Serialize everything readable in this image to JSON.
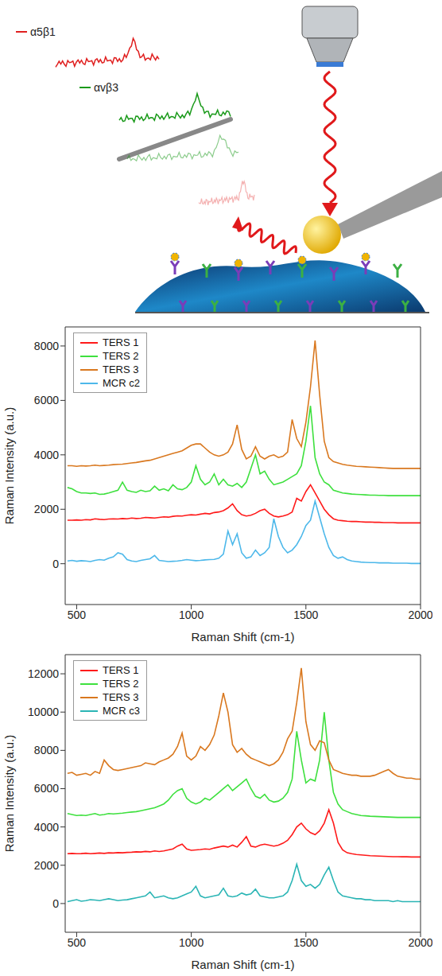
{
  "diagram": {
    "labels": [
      {
        "text": "α5β1",
        "color": "#e02020"
      },
      {
        "text": "αvβ3",
        "color": "#1a9a1a"
      }
    ]
  },
  "chart_data": [
    {
      "type": "line",
      "x_label": "Raman Shift (cm-1)",
      "y_label": "Raman Intensity (a.u.)",
      "legend": "upper left",
      "grid": false,
      "xlim": [
        450,
        2000
      ],
      "xticks": [
        500,
        1000,
        1500,
        2000
      ],
      "ylim": [
        -1500,
        8700
      ],
      "yticks": [
        0,
        2000,
        4000,
        6000,
        8000
      ],
      "x": [
        460,
        480,
        500,
        520,
        540,
        560,
        580,
        600,
        620,
        640,
        660,
        680,
        700,
        720,
        740,
        760,
        780,
        800,
        820,
        840,
        860,
        880,
        900,
        920,
        940,
        960,
        980,
        1000,
        1020,
        1040,
        1060,
        1080,
        1100,
        1120,
        1140,
        1160,
        1180,
        1200,
        1220,
        1240,
        1260,
        1280,
        1300,
        1320,
        1340,
        1360,
        1380,
        1400,
        1420,
        1440,
        1460,
        1480,
        1500,
        1520,
        1540,
        1560,
        1580,
        1600,
        1620,
        1640,
        1660,
        1680,
        1700,
        1720,
        1740,
        1760,
        1780,
        1800,
        1820,
        1840,
        1860,
        1880,
        1900,
        1920,
        1940,
        1960,
        1980,
        2000
      ],
      "series": [
        {
          "name": "TERS 1",
          "color": "#ff1a1a",
          "values": [
            1600,
            1600,
            1610,
            1600,
            1620,
            1610,
            1650,
            1630,
            1620,
            1640,
            1650,
            1640,
            1660,
            1650,
            1680,
            1660,
            1670,
            1700,
            1690,
            1680,
            1700,
            1720,
            1710,
            1740,
            1760,
            1750,
            1780,
            1800,
            1790,
            1820,
            1850,
            1830,
            1880,
            1900,
            1950,
            2050,
            2200,
            1950,
            1800,
            1750,
            1780,
            1850,
            1950,
            2000,
            1850,
            1750,
            1720,
            1750,
            1800,
            1900,
            2400,
            2300,
            2650,
            2900,
            2600,
            2300,
            2000,
            1800,
            1650,
            1600,
            1580,
            1560,
            1550,
            1550,
            1540,
            1530,
            1530,
            1520,
            1520,
            1510,
            1510,
            1510,
            1500,
            1500,
            1500,
            1500,
            1500,
            1500
          ]
        },
        {
          "name": "TERS 2",
          "color": "#3ee03e",
          "values": [
            2800,
            2750,
            2650,
            2600,
            2600,
            2580,
            2600,
            2550,
            2560,
            2600,
            2650,
            2700,
            3000,
            2700,
            2650,
            2620,
            2700,
            2650,
            2680,
            2850,
            2700,
            2750,
            2680,
            2900,
            2750,
            2720,
            2800,
            3000,
            3600,
            3100,
            2900,
            3000,
            3300,
            2900,
            3100,
            2900,
            2850,
            2950,
            2800,
            3000,
            3500,
            4000,
            3300,
            3400,
            3100,
            2900,
            2950,
            3000,
            3100,
            3200,
            3300,
            3600,
            4500,
            5800,
            3900,
            3300,
            3000,
            2900,
            2700,
            2650,
            2600,
            2580,
            2560,
            2550,
            2540,
            2530,
            2520,
            2520,
            2510,
            2510,
            2500,
            2500,
            2500,
            2500,
            2500,
            2500,
            2500,
            2500
          ]
        },
        {
          "name": "TERS 3",
          "color": "#d9781f",
          "values": [
            3600,
            3600,
            3580,
            3600,
            3590,
            3600,
            3620,
            3600,
            3610,
            3620,
            3640,
            3650,
            3660,
            3680,
            3700,
            3720,
            3750,
            3780,
            3800,
            3850,
            3900,
            3950,
            4000,
            4050,
            4100,
            4150,
            4250,
            4350,
            4400,
            4400,
            4250,
            4100,
            4000,
            3950,
            4000,
            4100,
            4400,
            5100,
            4200,
            3850,
            3950,
            4300,
            3950,
            3850,
            3950,
            4000,
            3900,
            3950,
            4100,
            5300,
            4600,
            4300,
            5200,
            6500,
            8200,
            6200,
            4500,
            3900,
            3750,
            3700,
            3650,
            3620,
            3600,
            3580,
            3570,
            3560,
            3550,
            3540,
            3530,
            3520,
            3510,
            3500,
            3500,
            3500,
            3500,
            3500,
            3500,
            3500
          ]
        },
        {
          "name": "MCR c2",
          "color": "#4db8ea",
          "values": [
            100,
            120,
            90,
            110,
            100,
            80,
            120,
            150,
            130,
            200,
            250,
            400,
            350,
            150,
            100,
            80,
            120,
            150,
            180,
            300,
            120,
            100,
            80,
            90,
            100,
            120,
            150,
            130,
            110,
            120,
            140,
            150,
            160,
            200,
            350,
            1200,
            700,
            1100,
            400,
            200,
            250,
            500,
            300,
            400,
            600,
            1650,
            1000,
            600,
            400,
            500,
            700,
            1000,
            1400,
            1600,
            2300,
            1700,
            1100,
            600,
            300,
            200,
            250,
            150,
            100,
            80,
            60,
            50,
            40,
            40,
            30,
            30,
            30,
            20,
            20,
            20,
            20,
            10,
            10,
            10
          ]
        }
      ]
    },
    {
      "type": "line",
      "x_label": "Raman Shift (cm-1)",
      "y_label": "Raman Intensity (a.u.)",
      "legend": "upper left",
      "grid": false,
      "xlim": [
        450,
        2000
      ],
      "xticks": [
        500,
        1000,
        1500,
        2000
      ],
      "ylim": [
        -1500,
        13000
      ],
      "yticks": [
        0,
        2000,
        4000,
        6000,
        8000,
        10000,
        12000
      ],
      "x": [
        460,
        480,
        500,
        520,
        540,
        560,
        580,
        600,
        620,
        640,
        660,
        680,
        700,
        720,
        740,
        760,
        780,
        800,
        820,
        840,
        860,
        880,
        900,
        920,
        940,
        960,
        980,
        1000,
        1020,
        1040,
        1060,
        1080,
        1100,
        1120,
        1140,
        1160,
        1180,
        1200,
        1220,
        1240,
        1260,
        1280,
        1300,
        1320,
        1340,
        1360,
        1380,
        1400,
        1420,
        1440,
        1460,
        1480,
        1500,
        1520,
        1540,
        1560,
        1580,
        1600,
        1620,
        1640,
        1660,
        1680,
        1700,
        1720,
        1740,
        1760,
        1780,
        1800,
        1820,
        1840,
        1860,
        1880,
        1900,
        1920,
        1940,
        1960,
        1980,
        2000
      ],
      "series": [
        {
          "name": "TERS 1",
          "color": "#ff1a1a",
          "values": [
            2600,
            2620,
            2600,
            2610,
            2630,
            2600,
            2620,
            2640,
            2620,
            2650,
            2640,
            2660,
            2650,
            2670,
            2680,
            2700,
            2690,
            2720,
            2700,
            2750,
            2720,
            2750,
            2800,
            2850,
            3000,
            3100,
            2850,
            2780,
            2800,
            2820,
            2850,
            2830,
            2900,
            2950,
            3000,
            2950,
            3050,
            2950,
            3200,
            3500,
            3000,
            2950,
            3050,
            3100,
            3050,
            3000,
            3050,
            3150,
            3300,
            3600,
            4000,
            4200,
            3900,
            3700,
            3600,
            3800,
            4200,
            4900,
            4200,
            3200,
            2800,
            2650,
            2600,
            2560,
            2540,
            2520,
            2500,
            2490,
            2480,
            2470,
            2460,
            2450,
            2450,
            2440,
            2440,
            2430,
            2430,
            2430
          ]
        },
        {
          "name": "TERS 2",
          "color": "#3ee03e",
          "values": [
            4700,
            4650,
            4600,
            4620,
            4600,
            4650,
            4700,
            4620,
            4650,
            4700,
            4680,
            4700,
            4720,
            4750,
            4780,
            4800,
            4850,
            4900,
            4950,
            5000,
            5100,
            5200,
            5400,
            5700,
            5900,
            6000,
            5500,
            5300,
            5200,
            5300,
            5500,
            5400,
            5600,
            5800,
            6000,
            6200,
            5900,
            6100,
            6300,
            6500,
            6000,
            5600,
            5500,
            5700,
            5400,
            5300,
            5350,
            5500,
            5800,
            6500,
            9000,
            7500,
            6300,
            6500,
            6400,
            7500,
            10000,
            7500,
            5800,
            5200,
            4900,
            4800,
            4700,
            4650,
            4600,
            4580,
            4560,
            4550,
            4540,
            4530,
            4520,
            4510,
            4500,
            4500,
            4500,
            4500,
            4500,
            4500
          ]
        },
        {
          "name": "TERS 3",
          "color": "#d9781f",
          "values": [
            6800,
            6850,
            6700,
            6750,
            6800,
            6700,
            6900,
            6800,
            7500,
            7200,
            7000,
            6950,
            7000,
            7050,
            7100,
            7150,
            7200,
            7350,
            7300,
            7250,
            7400,
            7500,
            7600,
            7800,
            8200,
            8900,
            7700,
            7500,
            7700,
            8200,
            8000,
            8300,
            8800,
            9800,
            11000,
            10000,
            8300,
            7900,
            8100,
            7800,
            7600,
            7500,
            7400,
            7300,
            7200,
            7300,
            7500,
            7900,
            8600,
            9000,
            10500,
            12300,
            9500,
            8300,
            8000,
            8500,
            8400,
            7500,
            7000,
            6900,
            6800,
            6750,
            6700,
            6700,
            6650,
            6650,
            6650,
            6700,
            6800,
            6900,
            7000,
            6800,
            6650,
            6600,
            6550,
            6550,
            6500,
            6500
          ]
        },
        {
          "name": "MCR c3",
          "color": "#2bb5b5",
          "values": [
            100,
            150,
            200,
            120,
            150,
            200,
            180,
            150,
            200,
            250,
            200,
            150,
            180,
            200,
            250,
            300,
            350,
            400,
            600,
            300,
            350,
            400,
            300,
            250,
            300,
            400,
            500,
            600,
            900,
            400,
            300,
            350,
            400,
            450,
            800,
            400,
            350,
            400,
            550,
            450,
            500,
            750,
            400,
            350,
            300,
            300,
            350,
            400,
            600,
            1200,
            2050,
            1200,
            900,
            1000,
            800,
            1000,
            1500,
            1900,
            1200,
            600,
            400,
            350,
            300,
            250,
            250,
            200,
            200,
            150,
            150,
            150,
            150,
            100,
            150,
            100,
            100,
            100,
            100,
            100
          ]
        }
      ]
    }
  ]
}
